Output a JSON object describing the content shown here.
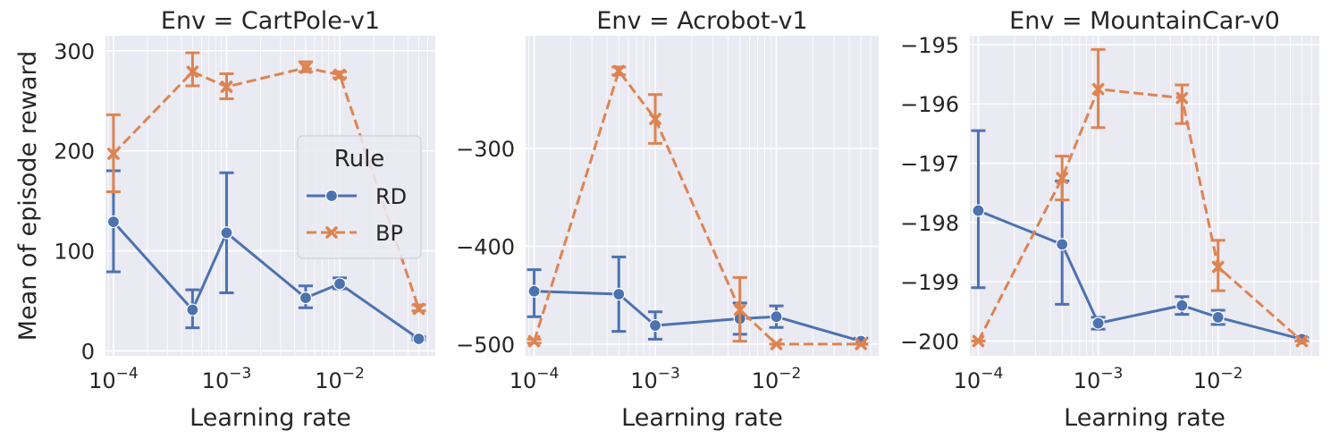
{
  "colors": {
    "RD": "#4c72b0",
    "BP": "#dd8452",
    "background": "#eaeaf2",
    "grid": "#ffffff"
  },
  "ylabel": "Mean of episode reward",
  "legend": {
    "title": "Rule",
    "placement": "center-right of first panel",
    "entries": [
      "RD",
      "BP"
    ]
  },
  "chart_data": [
    {
      "type": "line",
      "title": "Env = CartPole-v1",
      "xlabel": "Learning rate",
      "ylabel": "Mean of episode reward",
      "xscale": "log",
      "xlim": [
        8.5e-05,
        0.07
      ],
      "ylim": [
        -5,
        315
      ],
      "xticks": [
        {
          "value": 0.0001,
          "base": "10",
          "exp": "−4"
        },
        {
          "value": 0.001,
          "base": "10",
          "exp": "−3"
        },
        {
          "value": 0.01,
          "base": "10",
          "exp": "−2"
        }
      ],
      "yticks": [
        {
          "value": 0,
          "label": "0"
        },
        {
          "value": 100,
          "label": "100"
        },
        {
          "value": 200,
          "label": "200"
        },
        {
          "value": 300,
          "label": "300"
        }
      ],
      "grid": true,
      "series": [
        {
          "name": "RD",
          "marker": "circle",
          "dashed": false,
          "x": [
            0.0001,
            0.0005,
            0.001,
            0.005,
            0.01,
            0.05
          ],
          "y": [
            129,
            41,
            118,
            53,
            67,
            12
          ],
          "err_low": [
            79,
            23,
            58,
            43,
            62,
            11
          ],
          "err_high": [
            180,
            61,
            178,
            65,
            73,
            14
          ]
        },
        {
          "name": "BP",
          "marker": "x",
          "dashed": true,
          "x": [
            0.0001,
            0.0005,
            0.001,
            0.005,
            0.01,
            0.05
          ],
          "y": [
            197,
            279,
            264,
            283,
            276,
            42
          ],
          "err_low": [
            159,
            265,
            252,
            279,
            273,
            40
          ],
          "err_high": [
            236,
            298,
            277,
            289,
            279,
            46
          ]
        }
      ]
    },
    {
      "type": "line",
      "title": "Env = Acrobot-v1",
      "xlabel": "Learning rate",
      "ylabel": "",
      "xscale": "log",
      "xlim": [
        8.5e-05,
        0.07
      ],
      "ylim": [
        -512,
        -185
      ],
      "xticks": [
        {
          "value": 0.0001,
          "base": "10",
          "exp": "−4"
        },
        {
          "value": 0.001,
          "base": "10",
          "exp": "−3"
        },
        {
          "value": 0.01,
          "base": "10",
          "exp": "−2"
        }
      ],
      "yticks": [
        {
          "value": -300,
          "label": "−300"
        },
        {
          "value": -400,
          "label": "−400"
        },
        {
          "value": -500,
          "label": "−500"
        }
      ],
      "grid": true,
      "series": [
        {
          "name": "RD",
          "marker": "circle",
          "dashed": false,
          "x": [
            0.0001,
            0.0005,
            0.001,
            0.005,
            0.01,
            0.05
          ],
          "y": [
            -446,
            -449,
            -481,
            -474,
            -472,
            -497
          ],
          "err_low": [
            -472,
            -487,
            -495,
            -490,
            -483,
            -500
          ],
          "err_high": [
            -424,
            -411,
            -467,
            -458,
            -461,
            -494
          ]
        },
        {
          "name": "BP",
          "marker": "x",
          "dashed": true,
          "x": [
            0.0001,
            0.0005,
            0.001,
            0.005,
            0.01,
            0.05
          ],
          "y": [
            -497,
            -221,
            -270,
            -465,
            -500,
            -500
          ],
          "err_low": [
            -499,
            -225,
            -295,
            -497,
            -500,
            -500
          ],
          "err_high": [
            -495,
            -217,
            -245,
            -432,
            -500,
            -500
          ]
        }
      ]
    },
    {
      "type": "line",
      "title": "Env = MountainCar-v0",
      "xlabel": "Learning rate",
      "ylabel": "",
      "xscale": "log",
      "xlim": [
        8.5e-05,
        0.07
      ],
      "ylim": [
        -200.25,
        -194.85
      ],
      "xticks": [
        {
          "value": 0.0001,
          "base": "10",
          "exp": "−4"
        },
        {
          "value": 0.001,
          "base": "10",
          "exp": "−3"
        },
        {
          "value": 0.01,
          "base": "10",
          "exp": "−2"
        }
      ],
      "yticks": [
        {
          "value": -195,
          "label": "−195"
        },
        {
          "value": -196,
          "label": "−196"
        },
        {
          "value": -197,
          "label": "−197"
        },
        {
          "value": -198,
          "label": "−198"
        },
        {
          "value": -199,
          "label": "−199"
        },
        {
          "value": -200,
          "label": "−200"
        }
      ],
      "grid": true,
      "series": [
        {
          "name": "RD",
          "marker": "circle",
          "dashed": false,
          "x": [
            0.0001,
            0.0005,
            0.001,
            0.005,
            0.01,
            0.05
          ],
          "y": [
            -197.8,
            -198.37,
            -199.7,
            -199.4,
            -199.6,
            -199.97
          ],
          "err_low": [
            -199.1,
            -199.38,
            -199.8,
            -199.55,
            -199.72,
            -200.0
          ],
          "err_high": [
            -196.45,
            -197.3,
            -199.6,
            -199.25,
            -199.48,
            -199.94
          ]
        },
        {
          "name": "BP",
          "marker": "x",
          "dashed": true,
          "x": [
            0.0001,
            0.0005,
            0.001,
            0.005,
            0.01,
            0.05
          ],
          "y": [
            -200.0,
            -197.25,
            -195.75,
            -195.9,
            -198.75,
            -200.0
          ],
          "err_low": [
            -200.0,
            -197.62,
            -196.4,
            -196.33,
            -199.15,
            -200.0
          ],
          "err_high": [
            -200.0,
            -196.88,
            -195.08,
            -195.68,
            -198.3,
            -200.0
          ]
        }
      ]
    }
  ]
}
